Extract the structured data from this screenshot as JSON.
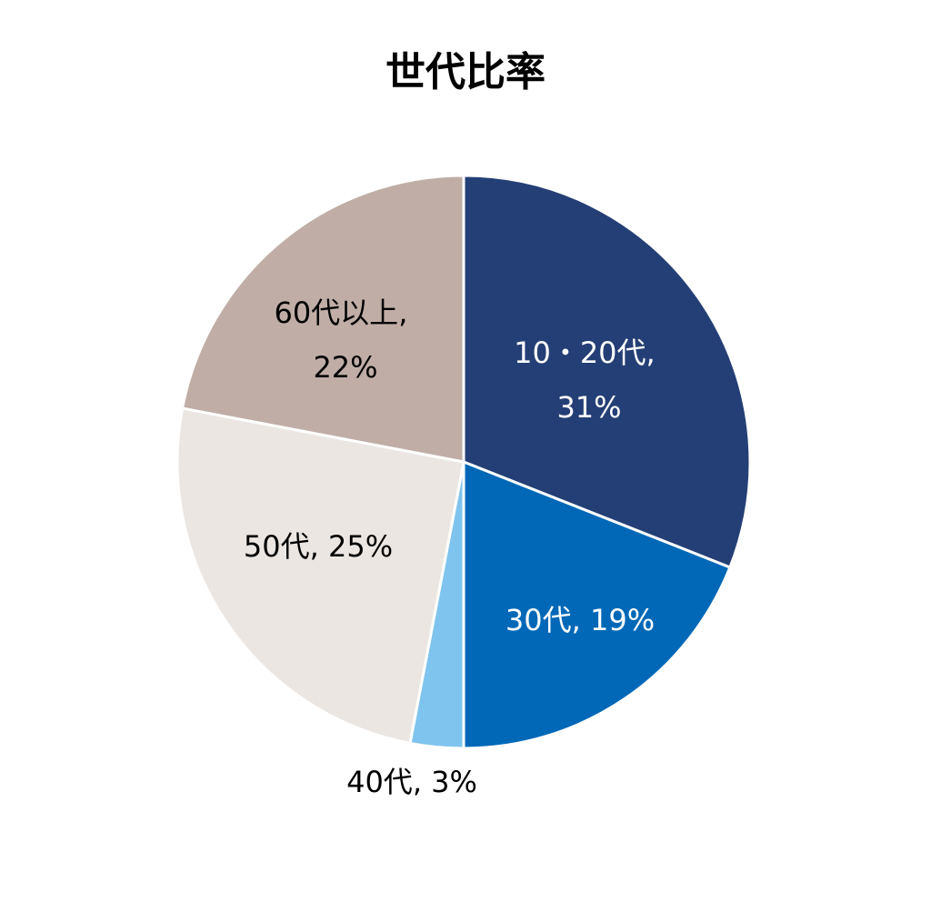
{
  "chart_data": {
    "type": "pie",
    "title": "世代比率",
    "categories": [
      "10・20代",
      "30代",
      "40代",
      "50代",
      "60代以上"
    ],
    "values": [
      31,
      19,
      3,
      25,
      22
    ],
    "value_labels": [
      "31%",
      "19%",
      "3%",
      "25%",
      "22%"
    ],
    "label_separator": ", ",
    "colors": [
      "#243f75",
      "#0068b7",
      "#7fc4ee",
      "#ece6e2",
      "#c0aea6"
    ]
  }
}
